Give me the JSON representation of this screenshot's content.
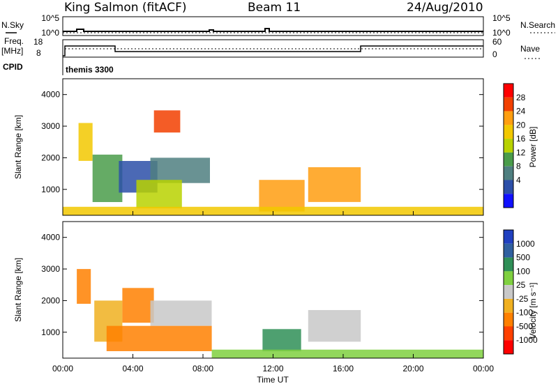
{
  "header": {
    "station": "King Salmon (fitACF)",
    "beam": "Beam 11",
    "date": "24/Aug/2010"
  },
  "top_panels": {
    "nsky_label": "N.Sky",
    "nsearch_label": "N.Search",
    "nsky_ticks": [
      "10^5",
      "10^0"
    ],
    "nsearch_ticks": [
      "10^5",
      "10^0"
    ],
    "freq_label": "Freq.",
    "freq_unit": "[MHz]",
    "freq_ticks": [
      "18",
      "8"
    ],
    "nave_ticks": [
      "60",
      "0"
    ],
    "nave_label": "Nave",
    "cpid_label": "CPID",
    "cpid_name": "themis 3300"
  },
  "chart_data": [
    {
      "type": "heatmap",
      "title": "",
      "xlabel": "Time UT",
      "ylabel": "Slant Range [km]",
      "xlim": [
        0,
        24
      ],
      "ylim": [
        180,
        4500
      ],
      "x_ticks": [
        "00:00",
        "04:00",
        "08:00",
        "12:00",
        "16:00",
        "20:00",
        "00:00"
      ],
      "y_ticks": [
        "1000",
        "2000",
        "3000",
        "4000"
      ],
      "colorbar": {
        "label": "Power [dB]",
        "levels": [
          "28",
          "24",
          "20",
          "16",
          "12",
          "8",
          "4"
        ],
        "colors": [
          "#ff0000",
          "#f24000",
          "#ff9e10",
          "#f2c800",
          "#b8d200",
          "#4a9c4a",
          "#4f7f80",
          "#2c4fa8",
          "#1010ff"
        ]
      },
      "cells": [
        {
          "t0": 0.9,
          "t1": 1.7,
          "r0": 1900,
          "r1": 3100,
          "level": 3
        },
        {
          "t0": 1.7,
          "t1": 3.4,
          "r0": 600,
          "r1": 2100,
          "level": 5
        },
        {
          "t0": 3.2,
          "t1": 5.4,
          "r0": 900,
          "r1": 1900,
          "level": 7
        },
        {
          "t0": 5.0,
          "t1": 8.4,
          "r0": 1200,
          "r1": 2000,
          "level": 6
        },
        {
          "t0": 4.2,
          "t1": 6.8,
          "r0": 400,
          "r1": 1300,
          "level": 4
        },
        {
          "t0": 5.2,
          "t1": 6.7,
          "r0": 2800,
          "r1": 3500,
          "level": 1
        },
        {
          "t0": 11.2,
          "t1": 13.8,
          "r0": 300,
          "r1": 1300,
          "level": 2
        },
        {
          "t0": 14.0,
          "t1": 17.0,
          "r0": 600,
          "r1": 1700,
          "level": 2
        },
        {
          "t0": 0.0,
          "t1": 24.0,
          "r0": 180,
          "r1": 450,
          "level": 3
        }
      ]
    },
    {
      "type": "heatmap",
      "title": "",
      "xlabel": "Time UT",
      "ylabel": "Slant Range [km]",
      "xlim": [
        0,
        24
      ],
      "ylim": [
        180,
        4500
      ],
      "x_ticks": [
        "00:00",
        "04:00",
        "08:00",
        "12:00",
        "16:00",
        "20:00",
        "00:00"
      ],
      "y_ticks": [
        "1000",
        "2000",
        "3000",
        "4000"
      ],
      "colorbar": {
        "label": "Velocity [m s⁻¹]",
        "levels": [
          "1000",
          "500",
          "100",
          "25",
          "-25",
          "-100",
          "-500",
          "-1000"
        ],
        "colors": [
          "#2040c0",
          "#3060a0",
          "#2f8f57",
          "#7fd040",
          "#c8c8c8",
          "#f0b020",
          "#ff8000",
          "#ff4000",
          "#ff0000"
        ]
      },
      "cells": [
        {
          "t0": 0.8,
          "t1": 1.6,
          "r0": 1900,
          "r1": 3000,
          "level": 6
        },
        {
          "t0": 1.8,
          "t1": 3.4,
          "r0": 700,
          "r1": 2000,
          "level": 5
        },
        {
          "t0": 3.4,
          "t1": 5.2,
          "r0": 1300,
          "r1": 2400,
          "level": 6
        },
        {
          "t0": 5.0,
          "t1": 8.5,
          "r0": 1200,
          "r1": 2000,
          "level": 4
        },
        {
          "t0": 2.5,
          "t1": 8.5,
          "r0": 400,
          "r1": 1200,
          "level": 6
        },
        {
          "t0": 11.4,
          "t1": 13.6,
          "r0": 400,
          "r1": 1100,
          "level": 2
        },
        {
          "t0": 14.0,
          "t1": 17.0,
          "r0": 700,
          "r1": 1700,
          "level": 4
        },
        {
          "t0": 8.5,
          "t1": 24.0,
          "r0": 180,
          "r1": 450,
          "level": 3
        }
      ]
    }
  ]
}
